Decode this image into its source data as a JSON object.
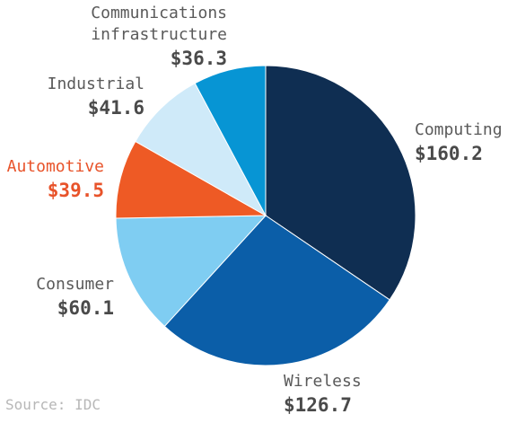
{
  "chart_data": {
    "type": "pie",
    "slices": [
      {
        "label": "Computing",
        "value_text": "$160.2",
        "value": 160.2,
        "color": "#0f2e52",
        "label_color": "#5a5a5a"
      },
      {
        "label": "Wireless",
        "value_text": "$126.7",
        "value": 126.7,
        "color": "#0b5ea8",
        "label_color": "#5a5a5a"
      },
      {
        "label": "Consumer",
        "value_text": "$60.1",
        "value": 60.1,
        "color": "#7fcdf2",
        "label_color": "#5a5a5a"
      },
      {
        "label": "Automotive",
        "value_text": "$39.5",
        "value": 39.5,
        "color": "#ee5a25",
        "label_color": "#e8532a"
      },
      {
        "label": "Industrial",
        "value_text": "$41.6",
        "value": 41.6,
        "color": "#cfeaf9",
        "label_color": "#5a5a5a"
      },
      {
        "label": "Communications infrastructure",
        "label_lines": [
          "Communications",
          "infrastructure"
        ],
        "value_text": "$36.3",
        "value": 36.3,
        "color": "#0795d4",
        "label_color": "#5a5a5a"
      }
    ],
    "start_angle_deg": 0,
    "direction": "clockwise"
  },
  "source": "Source: IDC"
}
